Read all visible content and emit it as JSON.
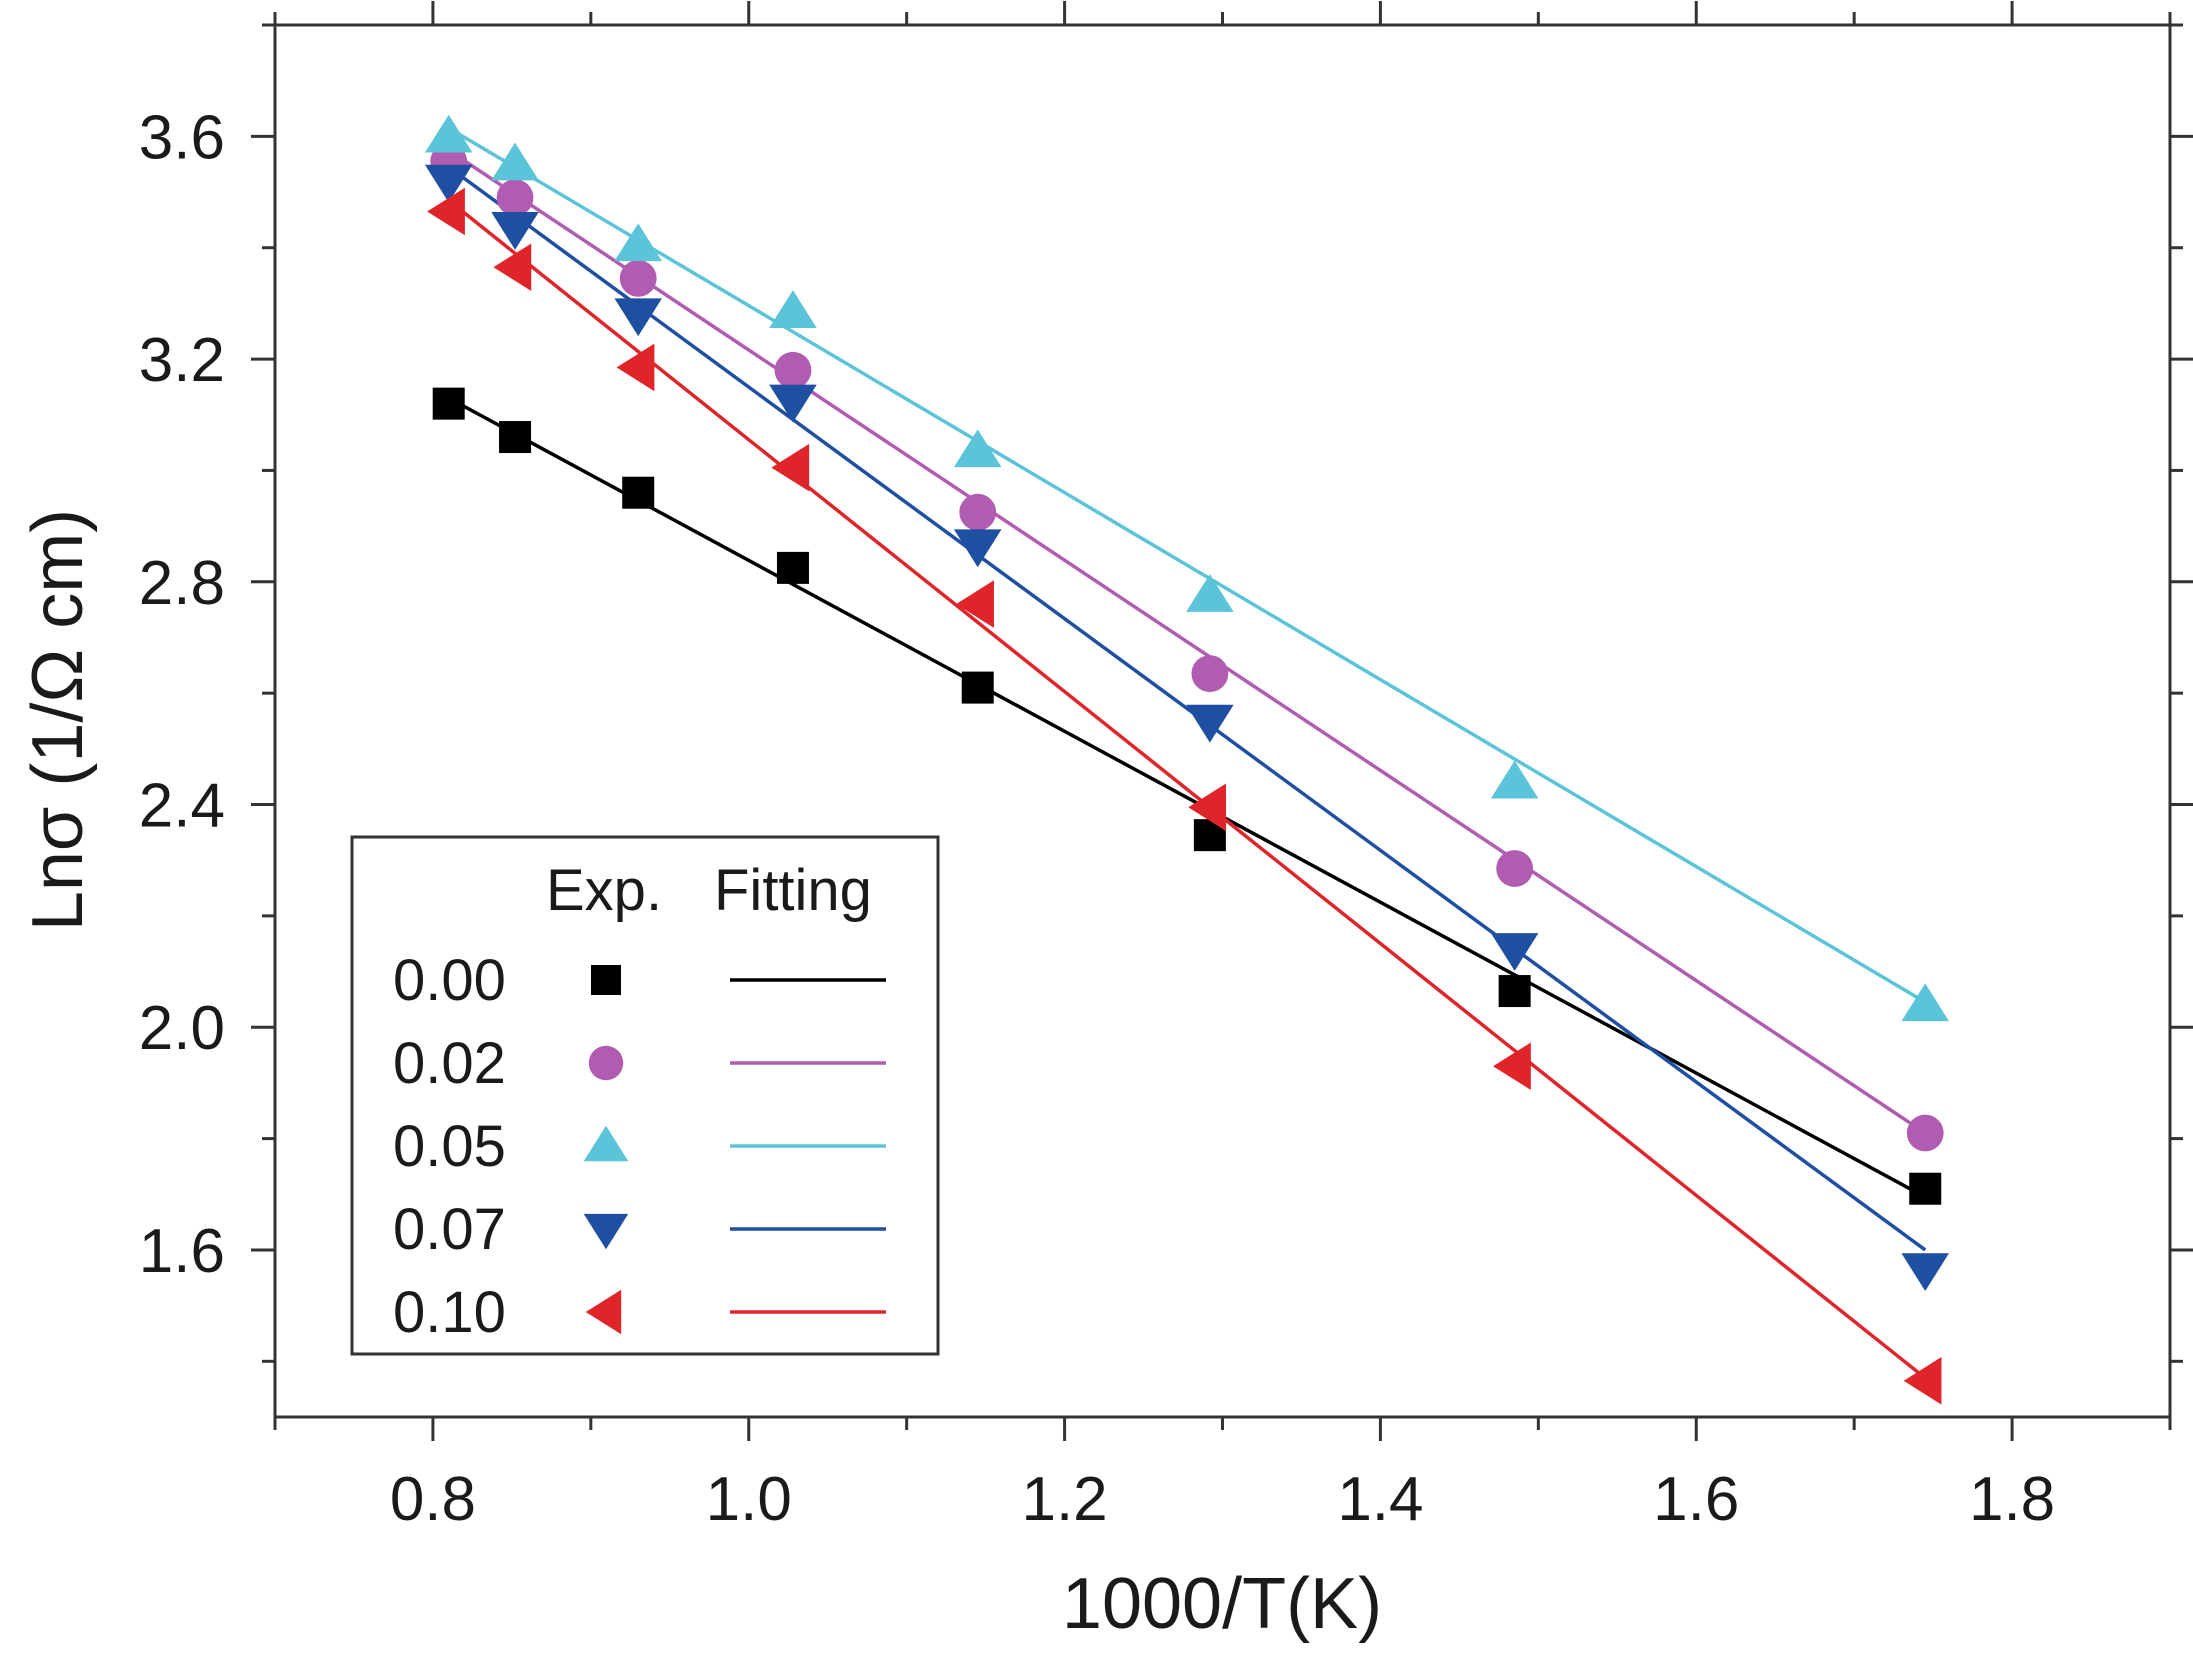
{
  "chart_data": {
    "type": "scatter",
    "xlabel": "1000/T(K)",
    "ylabel": "Lnσ  (1/Ω cm)",
    "xlim": [
      0.7,
      1.9
    ],
    "ylim": [
      1.3,
      3.8
    ],
    "x_ticks": [
      "0.8",
      "1.0",
      "1.2",
      "1.4",
      "1.6",
      "1.8"
    ],
    "y_ticks": [
      "1.6",
      "2.0",
      "2.4",
      "2.8",
      "3.2",
      "3.6"
    ],
    "legend": {
      "position": "bottom-left",
      "header_exp": "Exp.",
      "header_fit": "Fitting"
    },
    "x": [
      0.81,
      0.852,
      0.93,
      1.028,
      1.145,
      1.292,
      1.485,
      1.745
    ],
    "series": [
      {
        "name": "0.00",
        "marker": "square",
        "color": "#000000",
        "values": [
          3.12,
          3.06,
          2.96,
          2.825,
          2.61,
          2.345,
          2.065,
          1.71
        ],
        "fit": {
          "x": [
            0.81,
            1.745
          ],
          "y": [
            3.13,
            1.695
          ]
        }
      },
      {
        "name": "0.02",
        "marker": "circle",
        "color": "#b05cb0",
        "values": [
          3.555,
          3.49,
          3.345,
          3.18,
          2.925,
          2.635,
          2.285,
          1.81
        ],
        "fit": {
          "x": [
            0.81,
            1.745
          ],
          "y": [
            3.575,
            1.81
          ]
        }
      },
      {
        "name": "0.05",
        "marker": "triangle-up",
        "color": "#5bc4d8",
        "values": [
          3.6,
          3.55,
          3.405,
          3.285,
          3.035,
          2.775,
          2.44,
          2.04
        ],
        "fit": {
          "x": [
            0.81,
            1.745
          ],
          "y": [
            3.615,
            2.045
          ]
        }
      },
      {
        "name": "0.07",
        "marker": "triangle-down",
        "color": "#1f4fa0",
        "values": [
          3.52,
          3.435,
          3.28,
          3.125,
          2.865,
          2.55,
          2.14,
          1.565
        ],
        "fit": {
          "x": [
            0.81,
            1.745
          ],
          "y": [
            3.545,
            1.6
          ]
        }
      },
      {
        "name": "0.10",
        "marker": "triangle-left",
        "color": "#e0252a",
        "values": [
          3.465,
          3.365,
          3.185,
          3.005,
          2.76,
          2.395,
          1.93,
          1.365
        ],
        "fit": {
          "x": [
            0.81,
            1.745
          ],
          "y": [
            3.485,
            1.37
          ]
        }
      }
    ]
  }
}
